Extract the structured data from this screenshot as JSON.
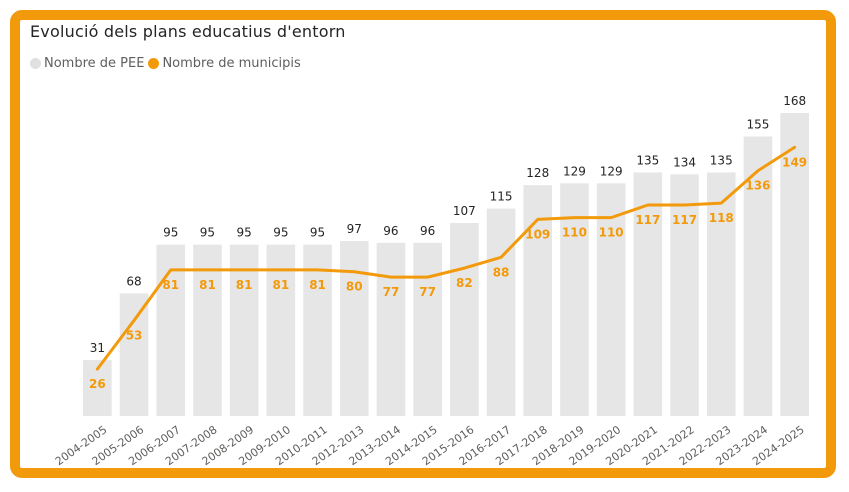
{
  "colors": {
    "frame": "#F29A0B",
    "bar": "#E6E6E6",
    "line": "#F29A0B",
    "bar_label": "#252423",
    "line_label": "#F29A0B",
    "tick": "#605E5C"
  },
  "chart_data": {
    "type": "bar",
    "title": "Evolució dels plans educatius d'entorn",
    "xlabel": "",
    "ylabel": "",
    "ylim": [
      0,
      168
    ],
    "grid": false,
    "legend_position": "top-left",
    "legend": [
      "Nombre de PEE",
      "Nombre de municipis"
    ],
    "categories": [
      "2004-2005",
      "2005-2006",
      "2006-2007",
      "2007-2008",
      "2008-2009",
      "2009-2010",
      "2010-2011",
      "2012-2013",
      "2013-2014",
      "2014-2015",
      "2015-2016",
      "2016-2017",
      "2017-2018",
      "2018-2019",
      "2019-2020",
      "2020-2021",
      "2021-2022",
      "2022-2023",
      "2023-2024",
      "2024-2025"
    ],
    "series": [
      {
        "name": "Nombre de PEE",
        "type": "bar",
        "values": [
          31,
          68,
          95,
          95,
          95,
          95,
          95,
          97,
          96,
          96,
          107,
          115,
          128,
          129,
          129,
          135,
          134,
          135,
          155,
          168
        ]
      },
      {
        "name": "Nombre de municipis",
        "type": "line",
        "values": [
          26,
          53,
          81,
          81,
          81,
          81,
          81,
          80,
          77,
          77,
          82,
          88,
          109,
          110,
          110,
          117,
          117,
          118,
          136,
          149
        ]
      }
    ]
  }
}
